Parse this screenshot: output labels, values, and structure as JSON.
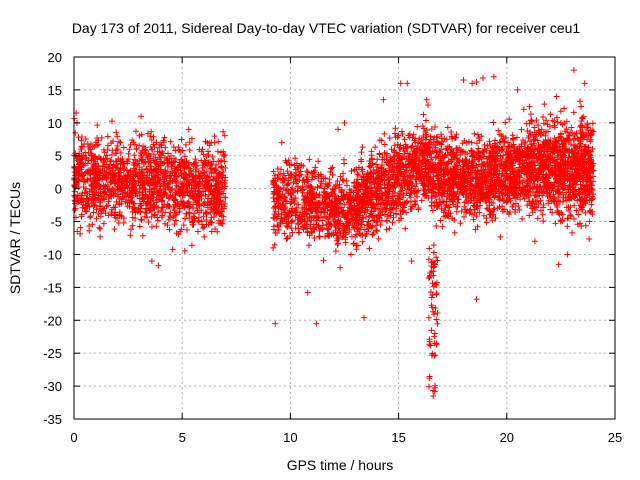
{
  "chart_data": {
    "type": "scatter",
    "title": "Day 173 of 2011, Sidereal Day-to-day VTEC variation (SDTVAR) for receiver ceu1",
    "xlabel": "GPS time / hours",
    "ylabel": "SDTVAR / TECUs",
    "xlim": [
      0,
      25
    ],
    "ylim": [
      -35,
      20
    ],
    "x_ticks": [
      0,
      5,
      10,
      15,
      20,
      25
    ],
    "y_ticks": [
      20,
      15,
      10,
      5,
      0,
      -5,
      -10,
      -15,
      -20,
      -25,
      -30,
      -35
    ],
    "grid": true,
    "marker": "+",
    "series_color": "#ff0000",
    "bands": [
      {
        "x": [
          0.0,
          7.0
        ],
        "center": [
          1.2,
          0.3
        ],
        "spread": 3.2,
        "count": 1500
      },
      {
        "x": [
          9.2,
          13.0
        ],
        "center": [
          -1.0,
          -3.5
        ],
        "spread": 2.8,
        "count": 700
      },
      {
        "x": [
          13.0,
          16.5
        ],
        "center": [
          -2.5,
          4.5
        ],
        "spread": 3.0,
        "count": 900
      },
      {
        "x": [
          16.5,
          18.8
        ],
        "center": [
          2.5,
          1.5
        ],
        "spread": 3.2,
        "count": 600
      },
      {
        "x": [
          18.8,
          21.0
        ],
        "center": [
          1.0,
          3.5
        ],
        "spread": 3.0,
        "count": 600
      },
      {
        "x": [
          21.0,
          24.0
        ],
        "center": [
          3.5,
          3.0
        ],
        "spread": 3.6,
        "count": 1000
      }
    ],
    "notable_points": [
      {
        "x": 0.1,
        "y": 11.5
      },
      {
        "x": 3.1,
        "y": 11.0
      },
      {
        "x": 3.6,
        "y": -11.0
      },
      {
        "x": 3.9,
        "y": -11.7
      },
      {
        "x": 5.3,
        "y": 9.0
      },
      {
        "x": 6.5,
        "y": 7.0
      },
      {
        "x": 9.3,
        "y": -20.5
      },
      {
        "x": 9.2,
        "y": -9.0
      },
      {
        "x": 9.6,
        "y": 7.0
      },
      {
        "x": 10.8,
        "y": -15.8
      },
      {
        "x": 11.2,
        "y": -20.5
      },
      {
        "x": 12.2,
        "y": 9.0
      },
      {
        "x": 12.5,
        "y": 10.0
      },
      {
        "x": 13.4,
        "y": -19.6
      },
      {
        "x": 12.3,
        "y": -12.0
      },
      {
        "x": 14.3,
        "y": 13.5
      },
      {
        "x": 15.1,
        "y": 16.0
      },
      {
        "x": 15.4,
        "y": 16.0
      },
      {
        "x": 15.6,
        "y": -11.0
      },
      {
        "x": 16.3,
        "y": 13.5
      },
      {
        "x": 18.0,
        "y": 16.5
      },
      {
        "x": 18.4,
        "y": 16.0
      },
      {
        "x": 18.6,
        "y": 16.2
      },
      {
        "x": 18.9,
        "y": 16.8
      },
      {
        "x": 19.4,
        "y": 17.0
      },
      {
        "x": 20.5,
        "y": 15.0
      },
      {
        "x": 22.3,
        "y": 14.0
      },
      {
        "x": 23.1,
        "y": 18.0
      },
      {
        "x": 23.6,
        "y": 16.0
      },
      {
        "x": 18.6,
        "y": -16.8
      },
      {
        "x": 22.4,
        "y": -11.5
      },
      {
        "x": 22.8,
        "y": -10.0
      },
      {
        "x": 21.3,
        "y": -8.0
      },
      {
        "x": 12.8,
        "y": -10.0
      }
    ],
    "dip": {
      "x": [
        16.4,
        16.8
      ],
      "min_y": -31.5,
      "max_y": -8.0,
      "count": 60
    }
  }
}
